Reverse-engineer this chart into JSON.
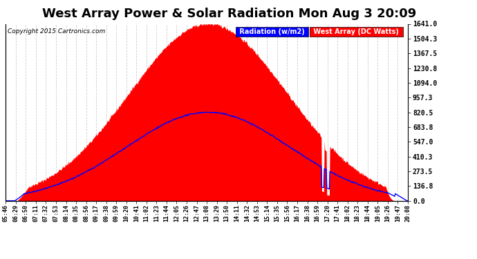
{
  "title": "West Array Power & Solar Radiation Mon Aug 3 20:09",
  "copyright": "Copyright 2015 Cartronics.com",
  "legend_labels": [
    "Radiation (w/m2)",
    "West Array (DC Watts)"
  ],
  "legend_colors": [
    "#0000ff",
    "#cc0000"
  ],
  "y_right_ticks": [
    0.0,
    136.8,
    273.5,
    410.3,
    547.0,
    683.8,
    820.5,
    957.3,
    1094.0,
    1230.8,
    1367.5,
    1504.3,
    1641.0
  ],
  "x_tick_labels": [
    "05:46",
    "06:29",
    "06:50",
    "07:11",
    "07:32",
    "07:53",
    "08:14",
    "08:35",
    "08:56",
    "09:17",
    "09:38",
    "09:59",
    "10:20",
    "10:41",
    "11:02",
    "11:23",
    "11:44",
    "12:05",
    "12:26",
    "12:47",
    "13:08",
    "13:29",
    "13:50",
    "14:11",
    "14:32",
    "14:53",
    "15:14",
    "15:35",
    "15:56",
    "16:17",
    "16:38",
    "16:59",
    "17:20",
    "17:41",
    "18:02",
    "18:23",
    "18:44",
    "19:05",
    "19:26",
    "19:47",
    "20:08"
  ],
  "background_color": "#ffffff",
  "plot_bg_color": "#ffffff",
  "grid_color": "#cccccc",
  "title_fontsize": 13,
  "y_max": 1641.0,
  "radiation_max": 820.5,
  "power_max": 1641.0,
  "noon_hour": 13.0,
  "power_sigma": 170,
  "radiation_sigma": 175
}
